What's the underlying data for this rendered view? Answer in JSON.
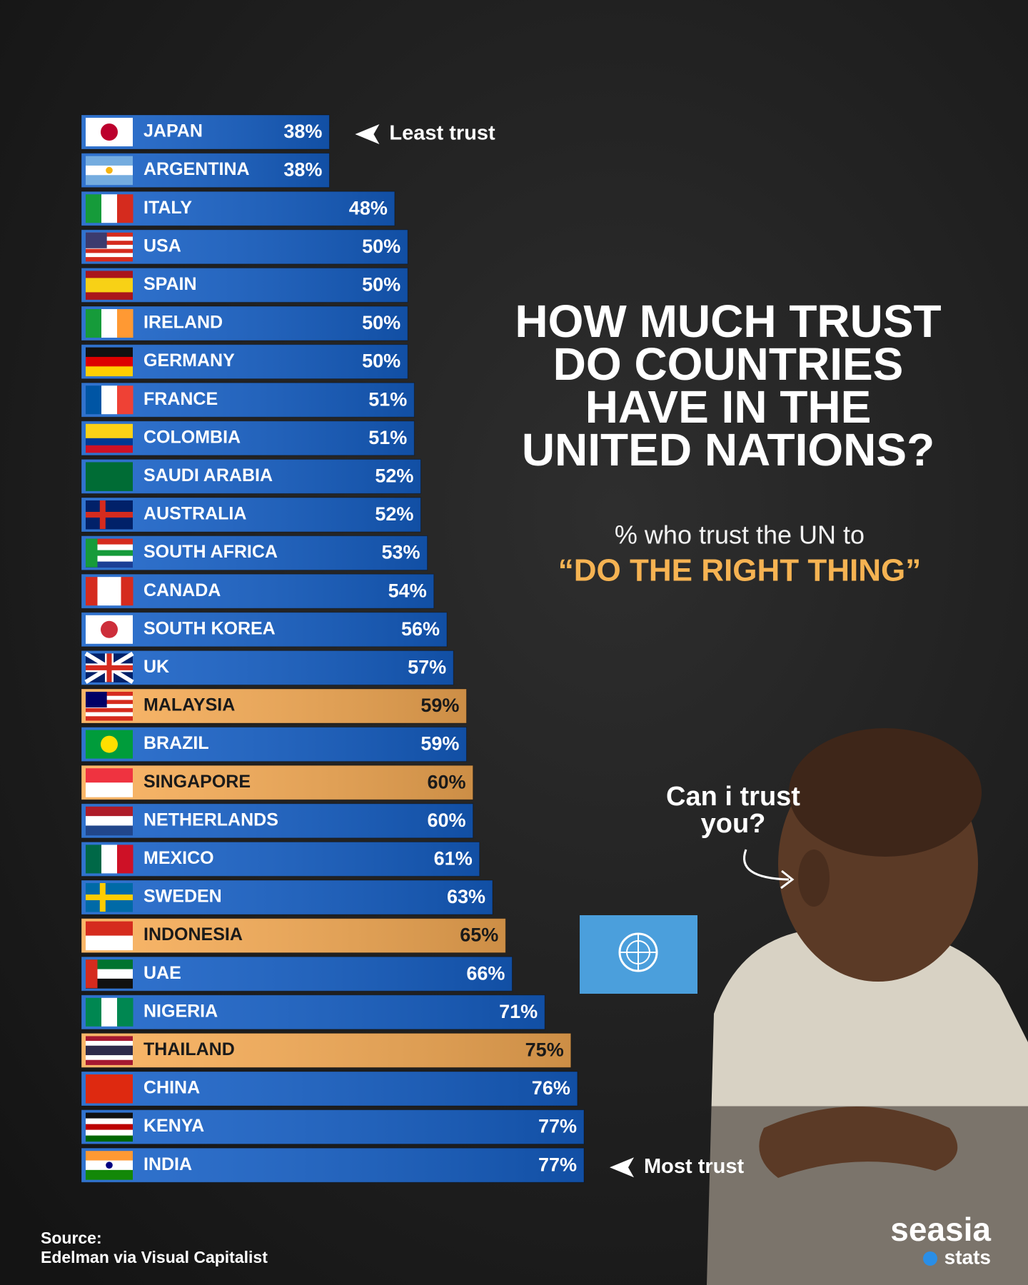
{
  "chart_data": {
    "type": "bar",
    "orientation": "horizontal",
    "title": [
      "HOW MUCH TRUST",
      "DO COUNTRIES",
      "HAVE IN THE",
      "UNITED NATIONS?"
    ],
    "subtitle": "% who trust the UN to",
    "subtitle_highlight": "“DO THE RIGHT THING”",
    "categories": [
      "JAPAN",
      "ARGENTINA",
      "ITALY",
      "USA",
      "SPAIN",
      "IRELAND",
      "GERMANY",
      "FRANCE",
      "COLOMBIA",
      "SAUDI ARABIA",
      "AUSTRALIA",
      "SOUTH AFRICA",
      "CANADA",
      "SOUTH KOREA",
      "UK",
      "MALAYSIA",
      "BRAZIL",
      "SINGAPORE",
      "NETHERLANDS",
      "MEXICO",
      "SWEDEN",
      "INDONESIA",
      "UAE",
      "NIGERIA",
      "THAILAND",
      "CHINA",
      "KENYA",
      "INDIA"
    ],
    "values": [
      38,
      38,
      48,
      50,
      50,
      50,
      50,
      51,
      51,
      52,
      52,
      53,
      54,
      56,
      57,
      59,
      59,
      60,
      60,
      61,
      63,
      65,
      66,
      71,
      75,
      76,
      77,
      77
    ],
    "value_labels": [
      "38%",
      "38%",
      "48%",
      "50%",
      "50%",
      "50%",
      "50%",
      "51%",
      "51%",
      "52%",
      "52%",
      "53%",
      "54%",
      "56%",
      "57%",
      "59%",
      "59%",
      "60%",
      "60%",
      "61%",
      "63%",
      "65%",
      "66%",
      "71%",
      "75%",
      "76%",
      "77%",
      "77%"
    ],
    "colors": [
      "#1560c8",
      "#1560c8",
      "#1560c8",
      "#1560c8",
      "#1560c8",
      "#1560c8",
      "#1560c8",
      "#1560c8",
      "#1560c8",
      "#1560c8",
      "#1560c8",
      "#1560c8",
      "#1560c8",
      "#1560c8",
      "#1560c8",
      "#f9ad55",
      "#1560c8",
      "#f9ad55",
      "#1560c8",
      "#1560c8",
      "#1560c8",
      "#f9ad55",
      "#1560c8",
      "#1560c8",
      "#f9ad55",
      "#1560c8",
      "#1560c8",
      "#1560c8"
    ],
    "annotations": [
      "Least trust",
      "Most trust"
    ],
    "callout": [
      "Can i trust",
      "you?"
    ],
    "source": [
      "Source:",
      "Edelman via Visual Capitalist"
    ],
    "logo": [
      "seasia",
      "stats"
    ]
  }
}
